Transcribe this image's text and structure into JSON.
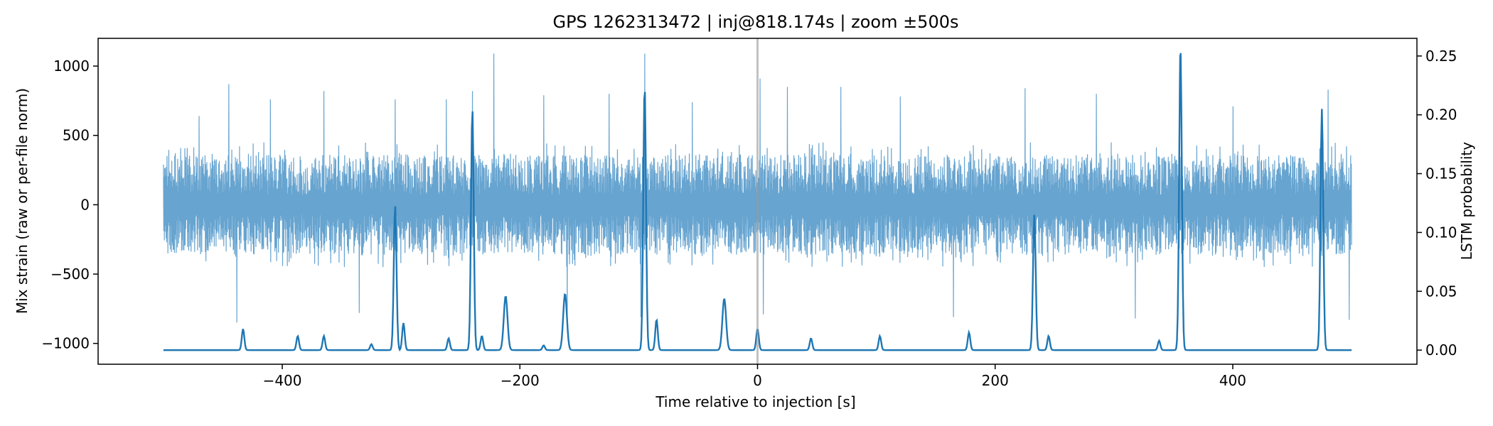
{
  "chart_data": {
    "type": "line",
    "title": "GPS 1262313472 | inj@818.174s | zoom ±500s",
    "xlabel": "Time relative to injection [s]",
    "ylabel_left": "Mix strain (raw or per-file norm)",
    "ylabel_right": "LSTM probability",
    "xlim": [
      -555,
      555
    ],
    "ylim_left": [
      -1150,
      1200
    ],
    "ylim_right": [
      -0.012,
      0.265
    ],
    "x_ticks": [
      -400,
      -200,
      0,
      200,
      400
    ],
    "x_tick_labels": [
      "−400",
      "−200",
      "0",
      "200",
      "400"
    ],
    "y_left_ticks": [
      -1000,
      -500,
      0,
      500,
      1000
    ],
    "y_left_tick_labels": [
      "−1000",
      "−500",
      "0",
      "500",
      "1000"
    ],
    "y_right_ticks": [
      0.0,
      0.05,
      0.1,
      0.15,
      0.2,
      0.25
    ],
    "y_right_tick_labels": [
      "0.00",
      "0.05",
      "0.10",
      "0.15",
      "0.20",
      "0.25"
    ],
    "grid": false,
    "injection_marker_x": 0,
    "colors": {
      "strain": "#5f9fcd",
      "probability": "#1f77b4",
      "injection_line": "#999999"
    },
    "series": [
      {
        "axis": "left",
        "x_range": [
          -500,
          500
        ],
        "typical_band": [
          -450,
          450
        ],
        "peaks": [
          {
            "x": -470,
            "y": 640
          },
          {
            "x": -445,
            "y": 870
          },
          {
            "x": -438,
            "y": -850
          },
          {
            "x": -410,
            "y": 760
          },
          {
            "x": -365,
            "y": 820
          },
          {
            "x": -335,
            "y": -780
          },
          {
            "x": -305,
            "y": 760
          },
          {
            "x": -262,
            "y": 760
          },
          {
            "x": -240,
            "y": 820
          },
          {
            "x": -222,
            "y": 1090
          },
          {
            "x": -180,
            "y": 790
          },
          {
            "x": -160,
            "y": -840
          },
          {
            "x": -125,
            "y": 800
          },
          {
            "x": -95,
            "y": 1090
          },
          {
            "x": -98,
            "y": -810
          },
          {
            "x": -55,
            "y": 740
          },
          {
            "x": 2,
            "y": 910
          },
          {
            "x": 25,
            "y": 850
          },
          {
            "x": 5,
            "y": -790
          },
          {
            "x": 70,
            "y": 850
          },
          {
            "x": 120,
            "y": 780
          },
          {
            "x": 165,
            "y": -810
          },
          {
            "x": 225,
            "y": 840
          },
          {
            "x": 285,
            "y": 800
          },
          {
            "x": 355,
            "y": 1080
          },
          {
            "x": 318,
            "y": -820
          },
          {
            "x": 400,
            "y": 710
          },
          {
            "x": 480,
            "y": 830
          },
          {
            "x": 498,
            "y": -830
          }
        ]
      },
      {
        "axis": "right",
        "baseline": 0.0,
        "peaks": [
          {
            "x": -433,
            "y": 0.018
          },
          {
            "x": -387,
            "y": 0.012
          },
          {
            "x": -365,
            "y": 0.012
          },
          {
            "x": -325,
            "y": 0.005
          },
          {
            "x": -305,
            "y": 0.123
          },
          {
            "x": -298,
            "y": 0.023
          },
          {
            "x": -260,
            "y": 0.01
          },
          {
            "x": -240,
            "y": 0.205
          },
          {
            "x": -232,
            "y": 0.012
          },
          {
            "x": -212,
            "y": 0.046
          },
          {
            "x": -180,
            "y": 0.004
          },
          {
            "x": -162,
            "y": 0.048
          },
          {
            "x": -95,
            "y": 0.225
          },
          {
            "x": -85,
            "y": 0.026
          },
          {
            "x": -28,
            "y": 0.044
          },
          {
            "x": 0,
            "y": 0.018
          },
          {
            "x": 45,
            "y": 0.01
          },
          {
            "x": 103,
            "y": 0.012
          },
          {
            "x": 178,
            "y": 0.015
          },
          {
            "x": 233,
            "y": 0.115
          },
          {
            "x": 245,
            "y": 0.012
          },
          {
            "x": 338,
            "y": 0.008
          },
          {
            "x": 356,
            "y": 0.255
          },
          {
            "x": 475,
            "y": 0.205
          }
        ]
      }
    ]
  }
}
